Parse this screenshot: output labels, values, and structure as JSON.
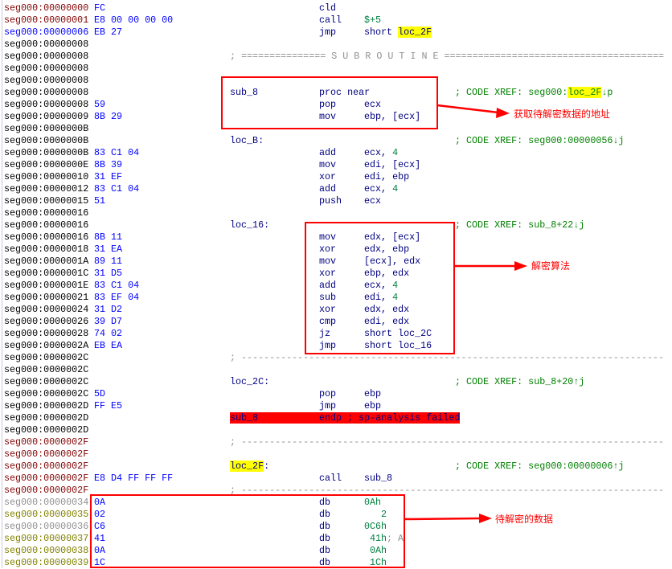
{
  "rows": [
    {
      "addr": "seg000:00000000",
      "ac": "dred",
      "bytes": "FC",
      "mnem": "cld"
    },
    {
      "addr": "seg000:00000001",
      "ac": "dred",
      "bytes": "E8 00 00 00 00",
      "mnem": "call",
      "ops": "$+5"
    },
    {
      "addr": "seg000:00000006",
      "ac": "blue",
      "bytes": "EB 27",
      "mnem": "jmp",
      "ops": "short loc_2F",
      "hl": "loc_2F"
    },
    {
      "addr": "seg000:00000008"
    },
    {
      "addr": "seg000:00000008",
      "sep": "; =============== S U B R O U T I N E ======================================="
    },
    {
      "addr": "seg000:00000008"
    },
    {
      "addr": "seg000:00000008"
    },
    {
      "addr": "seg000:00000008",
      "label": "sub_8",
      "mnem": "proc near",
      "cmt": "; CODE XREF: seg000:loc_2F↓p",
      "chl": "loc_2F"
    },
    {
      "addr": "seg000:00000008",
      "bytes": "59",
      "mnem": "pop",
      "ops": "ecx"
    },
    {
      "addr": "seg000:00000009",
      "bytes": "8B 29",
      "mnem": "mov",
      "ops": "ebp, [ecx]"
    },
    {
      "addr": "seg000:0000000B"
    },
    {
      "addr": "seg000:0000000B",
      "label": "loc_B:",
      "cmt": "; CODE XREF: seg000:00000056↓j"
    },
    {
      "addr": "seg000:0000000B",
      "bytes": "83 C1 04",
      "mnem": "add",
      "ops": "ecx, 4"
    },
    {
      "addr": "seg000:0000000E",
      "bytes": "8B 39",
      "mnem": "mov",
      "ops": "edi, [ecx]"
    },
    {
      "addr": "seg000:00000010",
      "bytes": "31 EF",
      "mnem": "xor",
      "ops": "edi, ebp"
    },
    {
      "addr": "seg000:00000012",
      "bytes": "83 C1 04",
      "mnem": "add",
      "ops": "ecx, 4"
    },
    {
      "addr": "seg000:00000015",
      "bytes": "51",
      "mnem": "push",
      "ops": "ecx"
    },
    {
      "addr": "seg000:00000016"
    },
    {
      "addr": "seg000:00000016",
      "label": "loc_16:",
      "cmt": "; CODE XREF: sub_8+22↓j"
    },
    {
      "addr": "seg000:00000016",
      "bytes": "8B 11",
      "mnem": "mov",
      "ops": "edx, [ecx]"
    },
    {
      "addr": "seg000:00000018",
      "bytes": "31 EA",
      "mnem": "xor",
      "ops": "edx, ebp"
    },
    {
      "addr": "seg000:0000001A",
      "bytes": "89 11",
      "mnem": "mov",
      "ops": "[ecx], edx"
    },
    {
      "addr": "seg000:0000001C",
      "bytes": "31 D5",
      "mnem": "xor",
      "ops": "ebp, edx"
    },
    {
      "addr": "seg000:0000001E",
      "bytes": "83 C1 04",
      "mnem": "add",
      "ops": "ecx, 4"
    },
    {
      "addr": "seg000:00000021",
      "bytes": "83 EF 04",
      "mnem": "sub",
      "ops": "edi, 4"
    },
    {
      "addr": "seg000:00000024",
      "bytes": "31 D2",
      "mnem": "xor",
      "ops": "edx, edx"
    },
    {
      "addr": "seg000:00000026",
      "bytes": "39 D7",
      "mnem": "cmp",
      "ops": "edi, edx"
    },
    {
      "addr": "seg000:00000028",
      "bytes": "74 02",
      "mnem": "jz",
      "ops": "short loc_2C"
    },
    {
      "addr": "seg000:0000002A",
      "bytes": "EB EA",
      "mnem": "jmp",
      "ops": "short loc_16"
    },
    {
      "addr": "seg000:0000002C",
      "sep": "; ---------------------------------------------------------------------------"
    },
    {
      "addr": "seg000:0000002C"
    },
    {
      "addr": "seg000:0000002C",
      "label": "loc_2C:",
      "cmt": "; CODE XREF: sub_8+20↑j"
    },
    {
      "addr": "seg000:0000002C",
      "bytes": "5D",
      "mnem": "pop",
      "ops": "ebp"
    },
    {
      "addr": "seg000:0000002D",
      "bytes": "FF E5",
      "mnem": "jmp",
      "ops": "ebp"
    },
    {
      "addr": "seg000:0000002D",
      "label": "sub_8",
      "mnem": "endp ; sp-analysis failed",
      "err": true
    },
    {
      "addr": "seg000:0000002D"
    },
    {
      "addr": "seg000:0000002F",
      "ac": "dred",
      "sep": "; ---------------------------------------------------------------------------"
    },
    {
      "addr": "seg000:0000002F",
      "ac": "dred"
    },
    {
      "addr": "seg000:0000002F",
      "ac": "dred",
      "label": "loc_2F:",
      "lhl": "loc_2F",
      "cmt": "; CODE XREF: seg000:00000006↑j"
    },
    {
      "addr": "seg000:0000002F",
      "ac": "dred",
      "bytes": "E8 D4 FF FF FF",
      "mnem": "call",
      "ops": "sub_8"
    },
    {
      "addr": "seg000:0000002F",
      "ac": "dred",
      "sep": "; ---------------------------------------------------------------------------"
    },
    {
      "addr": "seg000:00000034",
      "ac": "gray",
      "bytes": "0A",
      "mnem": "db",
      "ops": "0Ah"
    },
    {
      "addr": "seg000:00000035",
      "ac": "olive",
      "bytes": "02",
      "mnem": "db",
      "ops": "   2"
    },
    {
      "addr": "seg000:00000036",
      "ac": "gray",
      "bytes": "C6",
      "mnem": "db",
      "ops": "0C6h"
    },
    {
      "addr": "seg000:00000037",
      "ac": "olive",
      "bytes": "41",
      "mnem": "db",
      "ops": " 41h",
      "gcmt": "; A"
    },
    {
      "addr": "seg000:00000038",
      "ac": "olive",
      "bytes": "0A",
      "mnem": "db",
      "ops": " 0Ah"
    },
    {
      "addr": "seg000:00000039",
      "ac": "olive",
      "bytes": "1C",
      "mnem": "db",
      "ops": " 1Ch"
    }
  ],
  "annotations": {
    "get_address": "获取待解密数据的地址",
    "decrypt_algorithm": "解密算法",
    "encrypted_data": "待解密的数据"
  },
  "colors": {
    "annotation": "#ff0000",
    "highlight": "#ffff00",
    "mnemonic": "#000080",
    "number": "#008040",
    "comment": "#008000"
  }
}
